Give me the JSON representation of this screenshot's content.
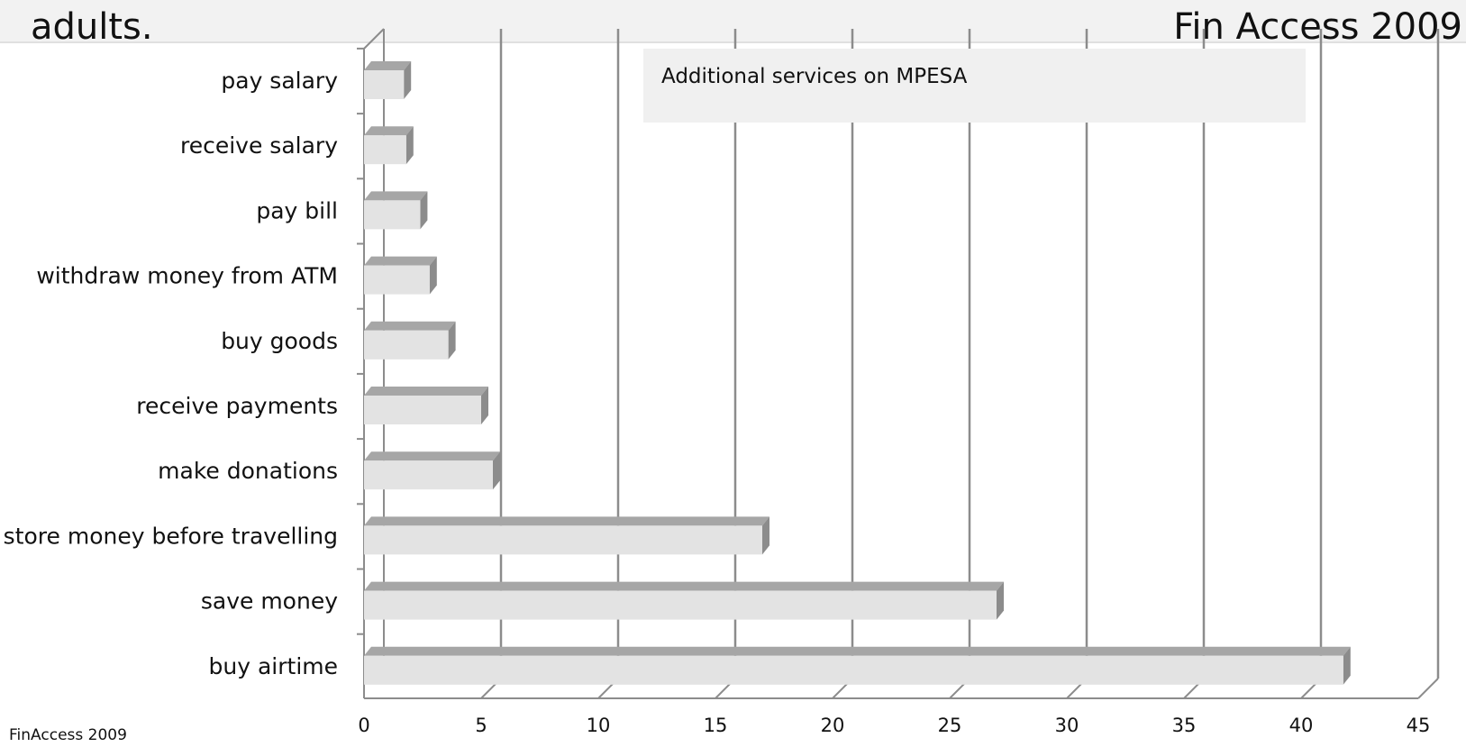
{
  "slide": {
    "text_left": "adults.",
    "text_right": "Fin Access 2009",
    "source": "FinAccess 2009"
  },
  "chart_data": {
    "type": "bar",
    "orientation": "horizontal",
    "title": "Additional services on MPESA",
    "categories": [
      "pay salary",
      "receive salary",
      "pay bill",
      "withdraw money from ATM",
      "buy goods",
      "receive payments",
      "make donations",
      "store money before travelling",
      "save money",
      "buy airtime"
    ],
    "values": [
      1.7,
      1.8,
      2.4,
      2.8,
      3.6,
      5.0,
      5.5,
      17.0,
      27.0,
      41.8
    ],
    "xlim": [
      0,
      45
    ],
    "xticks": [
      0,
      5,
      10,
      15,
      20,
      25,
      30,
      35,
      40,
      45
    ],
    "grid": true,
    "style": "3d",
    "colors": {
      "bar_front": "#e3e3e3",
      "bar_top": "#a6a6a6",
      "bar_side": "#8c8c8c",
      "gridline": "#8c8c8c",
      "title_box": "#f0f0f0"
    }
  }
}
